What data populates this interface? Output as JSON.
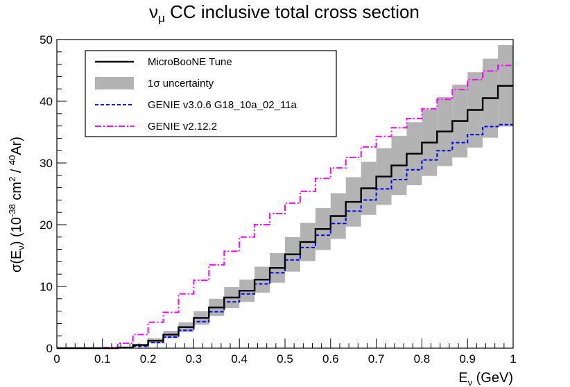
{
  "chart_data": {
    "type": "line",
    "title": {
      "base": "ν",
      "sub": "μ",
      "rest": " CC inclusive total cross section"
    },
    "xlabel": {
      "base": "E",
      "sub": "ν",
      "rest": " (GeV)"
    },
    "ylabel": {
      "p1": "σ(E",
      "sub": "ν",
      "p2": ") (10",
      "sup1": "-38",
      "p3": " cm",
      "sup2": "2",
      "p4": " / ",
      "sup3": "40",
      "p5": "Ar)"
    },
    "xlim": [
      0,
      1
    ],
    "ylim": [
      0,
      50
    ],
    "x_ticks": [
      "0",
      "0.1",
      "0.2",
      "0.3",
      "0.4",
      "0.5",
      "0.6",
      "0.7",
      "0.8",
      "0.9",
      "1"
    ],
    "y_ticks": [
      "0",
      "10",
      "20",
      "30",
      "40",
      "50"
    ],
    "bin_edges": [
      0.0,
      0.0333,
      0.0667,
      0.1,
      0.1333,
      0.1667,
      0.2,
      0.2333,
      0.2667,
      0.3,
      0.3333,
      0.3667,
      0.4,
      0.4333,
      0.4667,
      0.5,
      0.5333,
      0.5667,
      0.6,
      0.6333,
      0.6667,
      0.7,
      0.7333,
      0.7667,
      0.8,
      0.8333,
      0.8667,
      0.9,
      0.9333,
      0.9667,
      1.0
    ],
    "series": [
      {
        "name": "MicroBooNE Tune",
        "color": "#000000",
        "style": "solid",
        "values": [
          0,
          0,
          0,
          0,
          0.1,
          0.5,
          1.2,
          2.2,
          3.4,
          4.9,
          6.6,
          8.2,
          9.3,
          11.1,
          13.0,
          15.2,
          17.2,
          19.3,
          21.4,
          23.7,
          25.9,
          27.8,
          29.6,
          31.5,
          33.3,
          35.1,
          36.8,
          38.6,
          40.5,
          42.5
        ]
      },
      {
        "name": "1σ uncertainty",
        "color": "#b3b3b3",
        "style": "band",
        "lower": [
          0,
          0,
          0,
          0,
          0.05,
          0.3,
          0.8,
          1.6,
          2.6,
          3.8,
          5.2,
          6.5,
          7.5,
          9.0,
          10.6,
          12.4,
          14.1,
          15.9,
          17.7,
          19.7,
          21.6,
          23.2,
          24.8,
          26.4,
          27.9,
          29.5,
          30.9,
          32.5,
          34.1,
          35.9
        ],
        "upper": [
          0,
          0,
          0,
          0,
          0.15,
          0.7,
          1.6,
          2.8,
          4.2,
          6.0,
          8.0,
          9.9,
          11.1,
          13.2,
          15.4,
          18.0,
          20.3,
          22.7,
          25.1,
          27.7,
          30.2,
          32.4,
          34.4,
          36.6,
          38.7,
          40.7,
          42.7,
          44.7,
          46.9,
          49.1
        ]
      },
      {
        "name": "GENIE v3.0.6 G18_10a_02_11a",
        "color": "#0000ff",
        "style": "dashed",
        "values": [
          0,
          0,
          0,
          0,
          0.05,
          0.3,
          0.9,
          1.8,
          2.9,
          4.3,
          5.9,
          7.5,
          8.8,
          10.4,
          12.2,
          14.3,
          16.3,
          18.3,
          20.2,
          22.2,
          24.0,
          25.8,
          27.3,
          28.9,
          30.5,
          32.0,
          33.3,
          34.6,
          35.9,
          36.2
        ]
      },
      {
        "name": "GENIE v2.12.2",
        "color": "#ff00ff",
        "style": "dashdot",
        "values": [
          0,
          0,
          0,
          0.1,
          0.8,
          2.2,
          4.2,
          5.8,
          8.8,
          11.0,
          13.5,
          15.7,
          18.0,
          20.0,
          21.8,
          23.5,
          25.4,
          27.5,
          29.2,
          30.9,
          32.6,
          34.3,
          35.7,
          37.2,
          38.8,
          40.3,
          41.9,
          43.5,
          44.9,
          45.8
        ]
      }
    ],
    "legend": {
      "position": "top-left",
      "items": [
        {
          "label": "MicroBooNE Tune",
          "style": "solid",
          "color": "#000000"
        },
        {
          "label": "1σ uncertainty",
          "style": "band",
          "color": "#b3b3b3"
        },
        {
          "label": "GENIE v3.0.6 G18_10a_02_11a",
          "style": "dashed",
          "color": "#0000ff"
        },
        {
          "label": "GENIE v2.12.2",
          "style": "dashdot",
          "color": "#ff00ff"
        }
      ]
    },
    "grid": false
  }
}
